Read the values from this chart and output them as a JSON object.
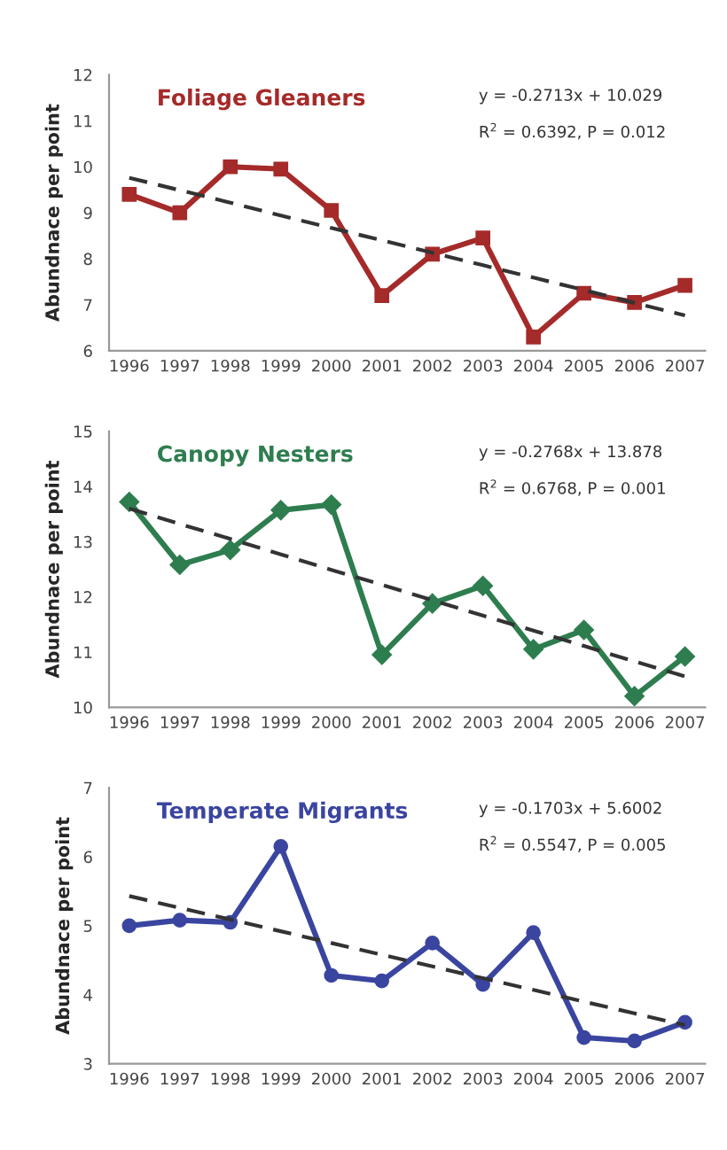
{
  "chart_data": [
    {
      "type": "line",
      "title": "Foliage Gleaners",
      "ylabel": "Abundnace per point",
      "categories": [
        "1996",
        "1997",
        "1998",
        "1999",
        "2000",
        "2001",
        "2002",
        "2003",
        "2004",
        "2005",
        "2006",
        "2007"
      ],
      "series": [
        {
          "color": "#a52a2a",
          "marker": "square",
          "line_style": "solid",
          "values": [
            9.4,
            9.0,
            10.0,
            9.95,
            9.05,
            7.2,
            8.1,
            8.45,
            6.3,
            7.25,
            7.05,
            7.42
          ]
        },
        {
          "type": "line",
          "color": "#333333",
          "marker": "none",
          "line_style": "dashed",
          "values": [
            9.76,
            9.49,
            9.22,
            8.94,
            8.67,
            8.4,
            8.13,
            7.86,
            7.59,
            7.32,
            7.04,
            6.77
          ]
        }
      ],
      "ylim": [
        6,
        12
      ],
      "yticks": [
        6,
        7,
        8,
        9,
        10,
        11,
        12
      ],
      "grid": false,
      "legend": false,
      "annotations": [
        "y = -0.2713x + 10.029",
        "R$^{2}$ = 0.6392, P = 0.012"
      ]
    },
    {
      "type": "line",
      "title": "Canopy Nesters",
      "ylabel": "Abundnace per point",
      "categories": [
        "1996",
        "1997",
        "1998",
        "1999",
        "2000",
        "2001",
        "2002",
        "2003",
        "2004",
        "2005",
        "2006",
        "2007"
      ],
      "series": [
        {
          "color": "#2e7d4f",
          "marker": "diamond",
          "line_style": "solid",
          "values": [
            13.72,
            12.58,
            12.85,
            13.57,
            13.67,
            10.95,
            11.88,
            12.2,
            11.05,
            11.4,
            10.2,
            10.92
          ]
        },
        {
          "type": "line",
          "color": "#333333",
          "marker": "none",
          "line_style": "dashed",
          "values": [
            13.6,
            13.32,
            13.05,
            12.77,
            12.49,
            12.22,
            11.94,
            11.66,
            11.39,
            11.11,
            10.83,
            10.56
          ]
        }
      ],
      "ylim": [
        10,
        15
      ],
      "yticks": [
        10,
        11,
        12,
        13,
        14,
        15
      ],
      "grid": false,
      "legend": false,
      "annotations": [
        "y = -0.2768x + 13.878",
        "R$^{2}$ = 0.6768, P = 0.001"
      ]
    },
    {
      "type": "line",
      "title": "Temperate Migrants",
      "ylabel": "Abundnace per point",
      "categories": [
        "1996",
        "1997",
        "1998",
        "1999",
        "2000",
        "2001",
        "2002",
        "2003",
        "2004",
        "2005",
        "2006",
        "2007"
      ],
      "series": [
        {
          "color": "#3a45a0",
          "marker": "circle",
          "line_style": "solid",
          "values": [
            5.0,
            5.08,
            5.05,
            6.15,
            4.28,
            4.2,
            4.75,
            4.15,
            4.9,
            3.38,
            3.33,
            3.6
          ]
        },
        {
          "type": "line",
          "color": "#333333",
          "marker": "none",
          "line_style": "dashed",
          "values": [
            5.43,
            5.26,
            5.09,
            4.92,
            4.75,
            4.58,
            4.41,
            4.24,
            4.07,
            3.9,
            3.73,
            3.56
          ]
        }
      ],
      "ylim": [
        3,
        7
      ],
      "yticks": [
        3,
        4,
        5,
        6,
        7
      ],
      "grid": false,
      "legend": false,
      "annotations": [
        "y = -0.1703x + 5.6002",
        "R$^{2}$ = 0.5547, P = 0.005"
      ]
    }
  ]
}
